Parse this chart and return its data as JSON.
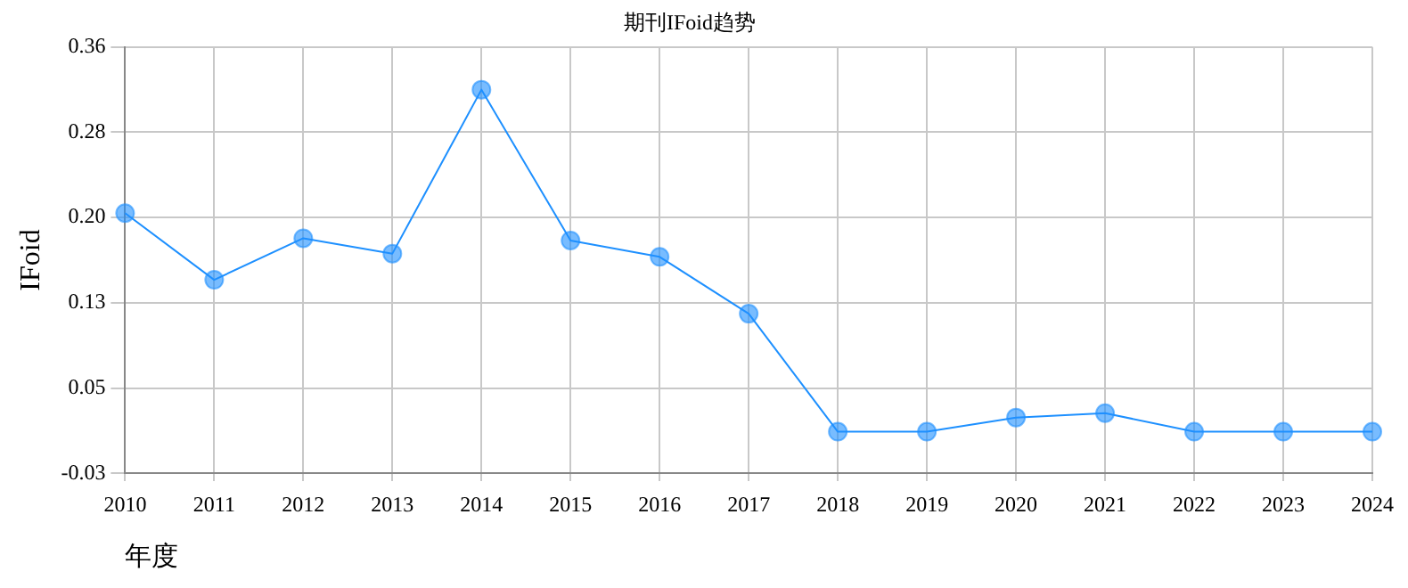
{
  "chart_data": {
    "type": "line",
    "title": "期刊IFoid趋势",
    "xlabel": "年度",
    "ylabel": "IFoid",
    "categories": [
      "2010",
      "2011",
      "2012",
      "2013",
      "2014",
      "2015",
      "2016",
      "2017",
      "2018",
      "2019",
      "2020",
      "2021",
      "2022",
      "2023",
      "2024"
    ],
    "series": [
      {
        "color": "#1e90ff",
        "values": [
          0.208,
          0.147,
          0.185,
          0.171,
          0.321,
          0.183,
          0.168,
          0.116,
          0.008,
          0.008,
          0.021,
          0.025,
          0.008,
          0.008,
          0.008
        ]
      }
    ],
    "ylim": [
      -0.03,
      0.36
    ],
    "yticks": [
      -0.03,
      {
        "value": 0.048,
        "label": "0.05"
      },
      {
        "value": 0.126,
        "label": "0.13"
      },
      {
        "value": 0.204,
        "label": "0.20"
      },
      {
        "value": 0.282,
        "label": "0.28"
      },
      0.36
    ],
    "grid": true,
    "marker": "circle",
    "line_style": "solid",
    "legend": false
  }
}
